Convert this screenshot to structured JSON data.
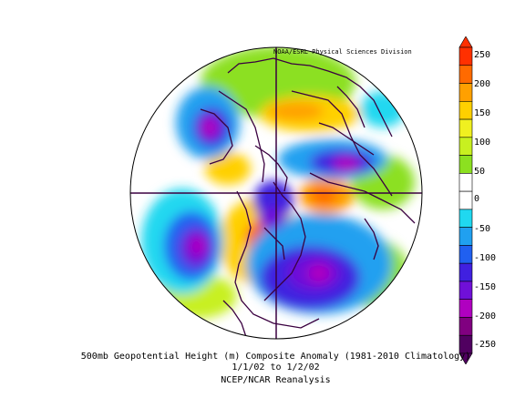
{
  "credit": "NOAA/ESRL Physical Sciences Division",
  "caption": {
    "line1": "500mb Geopotential Height (m) Composite Anomaly (1981-2010 Climatology)",
    "line2": "1/1/02  to 1/2/02",
    "line3": "NCEP/NCAR Reanalysis"
  },
  "colorbar": {
    "min": -250,
    "max": 250,
    "labels": [
      "250",
      "200",
      "150",
      "100",
      "50",
      "0",
      "-50",
      "-100",
      "-150",
      "-200",
      "-250"
    ],
    "colors": [
      "#ff3000",
      "#ff6a00",
      "#ffa000",
      "#ffd000",
      "#f0f020",
      "#c8f020",
      "#8ce020",
      "#ffffff",
      "#ffffff",
      "#20d8f0",
      "#20a0f0",
      "#2060f0",
      "#4020e0",
      "#7010d8",
      "#b000c0",
      "#800080",
      "#500060"
    ]
  },
  "colors": {
    "outline": "#3a0040",
    "land": "#4a0a4a"
  }
}
